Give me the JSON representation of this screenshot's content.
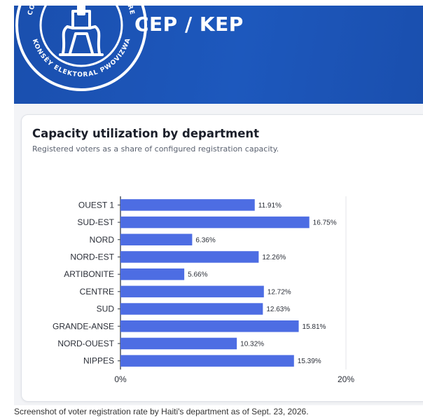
{
  "header": {
    "brand_text": "CEP / KEP",
    "seal_text_top": "CONSEIL ÉLECTORAL PROVISOIRE",
    "seal_text_bottom": "HAITI • KONSÈY ELEKTORAL PWOVIZWA • AYITI",
    "colors": {
      "banner": "#1d58bd",
      "seal": "#ffffff"
    }
  },
  "chart_data": {
    "type": "bar",
    "orientation": "horizontal",
    "title": "Capacity utilization by department",
    "subtitle": "Registered voters as a share of configured registration capacity.",
    "categories": [
      "OUEST 1",
      "SUD-EST",
      "NORD",
      "NORD-EST",
      "ARTIBONITE",
      "CENTRE",
      "SUD",
      "GRANDE-ANSE",
      "NORD-OUEST",
      "NIPPES"
    ],
    "values": [
      11.91,
      16.75,
      6.36,
      12.26,
      5.66,
      12.72,
      12.63,
      15.81,
      10.32,
      15.39
    ],
    "value_labels": [
      "11.91%",
      "16.75%",
      "6.36%",
      "12.26%",
      "5.66%",
      "12.72%",
      "12.63%",
      "15.81%",
      "10.32%",
      "15.39%"
    ],
    "xlim": [
      0,
      20
    ],
    "x_ticks": [
      0,
      20
    ],
    "x_tick_labels": [
      "0%",
      "20%"
    ],
    "grid": true,
    "legend": "none",
    "bar_color": "#4d6de3"
  },
  "caption": "Screenshot of voter registration rate by Haiti's department as of Sept. 23, 2026."
}
